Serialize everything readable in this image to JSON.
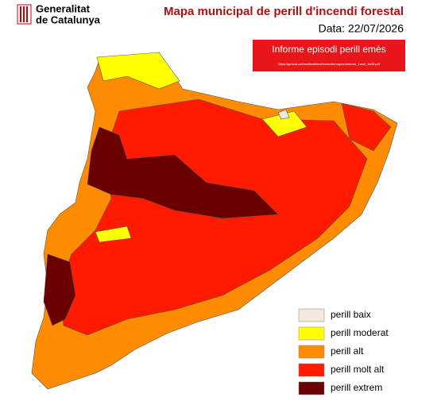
{
  "header": {
    "org_line1": "Generalitat",
    "org_line2": "de Catalunya"
  },
  "title": "Mapa municipal de perill d'incendi forestal",
  "date": "Data: 22/07/2026",
  "notice": {
    "text": "Informe episodi perill emès",
    "url": "https://gencat.cat/mediambient/incendis/mapes/Informe_1atoll_1b49.pdf"
  },
  "legend": [
    {
      "label": "perill baix",
      "color": "#f3e8dc"
    },
    {
      "label": "perill moderat",
      "color": "#ffff00"
    },
    {
      "label": "perill alt",
      "color": "#ff8c00"
    },
    {
      "label": "perill molt alt",
      "color": "#ff1a00"
    },
    {
      "label": "perill extrem",
      "color": "#6b0000"
    }
  ]
}
